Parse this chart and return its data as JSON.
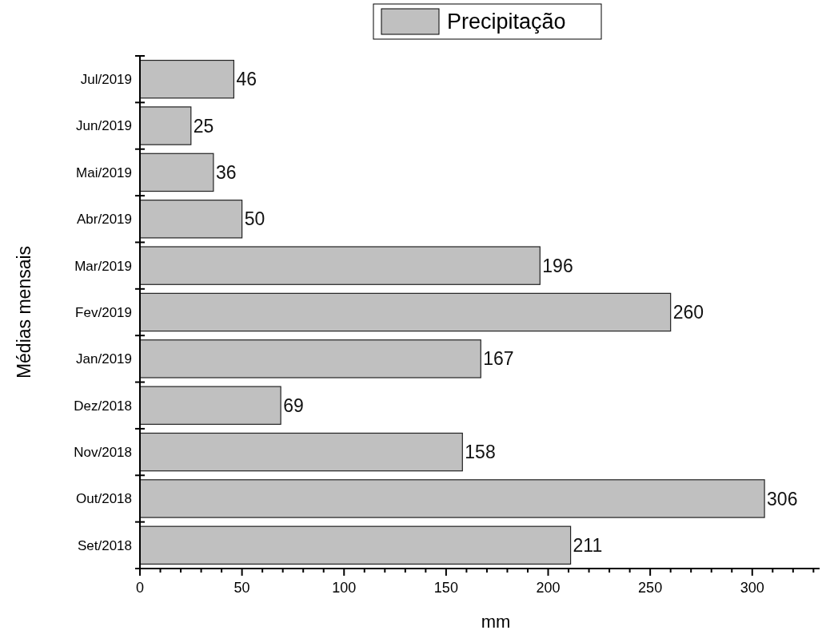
{
  "chart_data": {
    "type": "bar",
    "orientation": "horizontal",
    "xlabel": "mm",
    "ylabel": "Médias mensais",
    "categories": [
      "Jul/2019",
      "Jun/2019",
      "Mai/2019",
      "Abr/2019",
      "Mar/2019",
      "Fev/2019",
      "Jan/2019",
      "Dez/2018",
      "Nov/2018",
      "Out/2018",
      "Set/2018"
    ],
    "series": [
      {
        "name": "Precipitação",
        "color": "#c0c0c0",
        "values": [
          46,
          25,
          36,
          50,
          196,
          260,
          167,
          69,
          158,
          306,
          211
        ]
      }
    ],
    "xlim": [
      0,
      333
    ],
    "xticks": [
      0,
      {
        "value": 10,
        "label": null
      },
      {
        "value": 20,
        "label": null
      },
      {
        "value": 30,
        "label": null
      },
      {
        "value": 40,
        "label": null
      },
      50,
      {
        "value": 60,
        "label": null
      },
      {
        "value": 70,
        "label": null
      },
      {
        "value": 80,
        "label": null
      },
      {
        "value": 90,
        "label": null
      },
      100,
      {
        "value": 110,
        "label": null
      },
      {
        "value": 120,
        "label": null
      },
      {
        "value": 130,
        "label": null
      },
      {
        "value": 140,
        "label": null
      },
      150,
      {
        "value": 160,
        "label": null
      },
      {
        "value": 170,
        "label": null
      },
      {
        "value": 180,
        "label": null
      },
      {
        "value": 190,
        "label": null
      },
      200,
      {
        "value": 210,
        "label": null
      },
      {
        "value": 220,
        "label": null
      },
      {
        "value": 230,
        "label": null
      },
      {
        "value": 240,
        "label": null
      },
      250,
      {
        "value": 260,
        "label": null
      },
      {
        "value": 270,
        "label": null
      },
      {
        "value": 280,
        "label": null
      },
      {
        "value": 290,
        "label": null
      },
      300,
      {
        "value": 310,
        "label": null
      },
      {
        "value": 320,
        "label": null
      },
      {
        "value": 330,
        "label": null
      }
    ],
    "data_labels": true,
    "legend": "top",
    "grid": false
  }
}
